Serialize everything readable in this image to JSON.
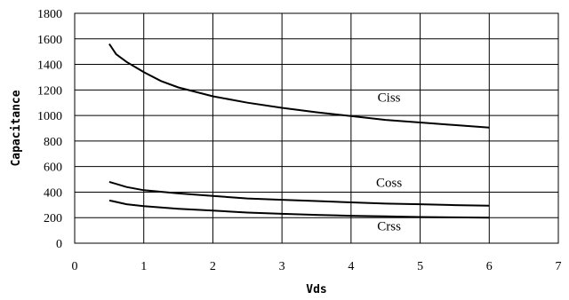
{
  "chart_data": {
    "type": "line",
    "xlabel": "Vds",
    "ylabel": "Capacitance",
    "xlim": [
      0,
      7
    ],
    "ylim": [
      0,
      1800
    ],
    "xticks": [
      "0",
      "1",
      "2",
      "3",
      "4",
      "5",
      "6",
      "7"
    ],
    "yticks": [
      "0",
      "200",
      "400",
      "600",
      "800",
      "1000",
      "1200",
      "1400",
      "1600",
      "1800"
    ],
    "grid": true,
    "series": [
      {
        "name": "Ciss",
        "x": [
          0.5,
          0.6,
          0.75,
          1.0,
          1.25,
          1.5,
          2.0,
          2.5,
          3.0,
          3.5,
          4.0,
          4.5,
          5.0,
          5.5,
          6.0
        ],
        "y": [
          1560,
          1480,
          1420,
          1340,
          1270,
          1220,
          1150,
          1100,
          1060,
          1025,
          995,
          965,
          945,
          925,
          905
        ]
      },
      {
        "name": "Coss",
        "x": [
          0.5,
          0.75,
          1.0,
          1.5,
          2.0,
          2.5,
          3.0,
          3.5,
          4.0,
          4.5,
          5.0,
          5.5,
          6.0
        ],
        "y": [
          480,
          440,
          415,
          390,
          370,
          350,
          340,
          330,
          320,
          310,
          305,
          298,
          293
        ]
      },
      {
        "name": "Crss",
        "x": [
          0.5,
          0.75,
          1.0,
          1.5,
          2.0,
          2.5,
          3.0,
          3.5,
          4.0,
          4.5,
          5.0,
          5.5,
          6.0
        ],
        "y": [
          335,
          305,
          290,
          270,
          255,
          240,
          230,
          222,
          215,
          210,
          205,
          202,
          200
        ]
      }
    ]
  }
}
